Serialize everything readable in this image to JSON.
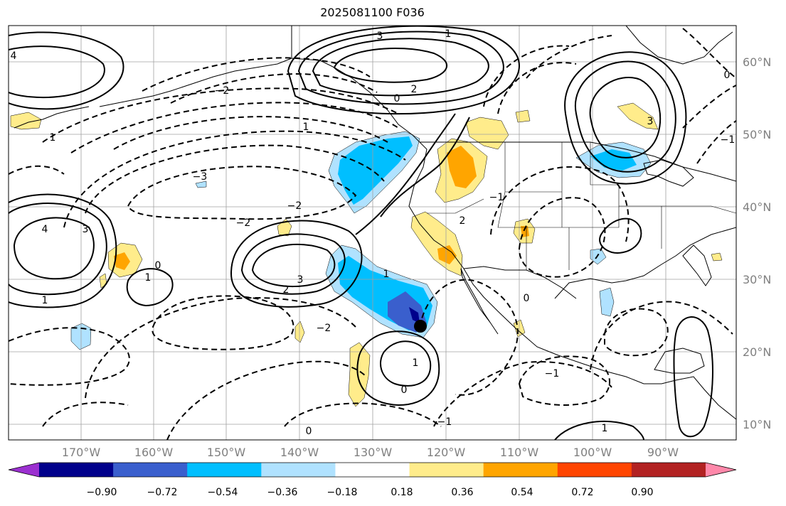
{
  "title": "2025081100 F036",
  "lat_labels": [
    "60°N",
    "50°N",
    "40°N",
    "30°N",
    "20°N",
    "10°N"
  ],
  "lon_labels": [
    "170°W",
    "160°W",
    "150°W",
    "140°W",
    "130°W",
    "120°W",
    "110°W",
    "100°W",
    "90°W"
  ],
  "colorbar": {
    "ticks": [
      "−0.90",
      "−0.72",
      "−0.54",
      "−0.36",
      "−0.18",
      "0.18",
      "0.36",
      "0.54",
      "0.72",
      "0.90"
    ],
    "colors": [
      "#9b30d0",
      "#00008b",
      "#3a5fcd",
      "#00bfff",
      "#b0e2ff",
      "#ffffff",
      "#ffec8b",
      "#ffa500",
      "#ff4500",
      "#b22222",
      "#ff88aa"
    ]
  },
  "fill_colors": {
    "light_blue": "#b0e2ff",
    "blue": "#00bfff",
    "dark_blue": "#3a5fcd",
    "navy": "#00008b",
    "light_yellow": "#ffec8b",
    "orange": "#ffa500"
  },
  "contour_labels": [
    "3",
    "1",
    "2",
    "−2",
    "1",
    "0",
    "3",
    "4",
    "−3",
    "−2",
    "−2",
    "4",
    "1",
    "3",
    "−2",
    "1",
    "0",
    "1",
    "1",
    "0",
    "0",
    "−1",
    "1",
    "2",
    "3",
    "0",
    "2",
    "1",
    "−1",
    "−1",
    "−1",
    "0"
  ],
  "marker": "storm-center-dot"
}
